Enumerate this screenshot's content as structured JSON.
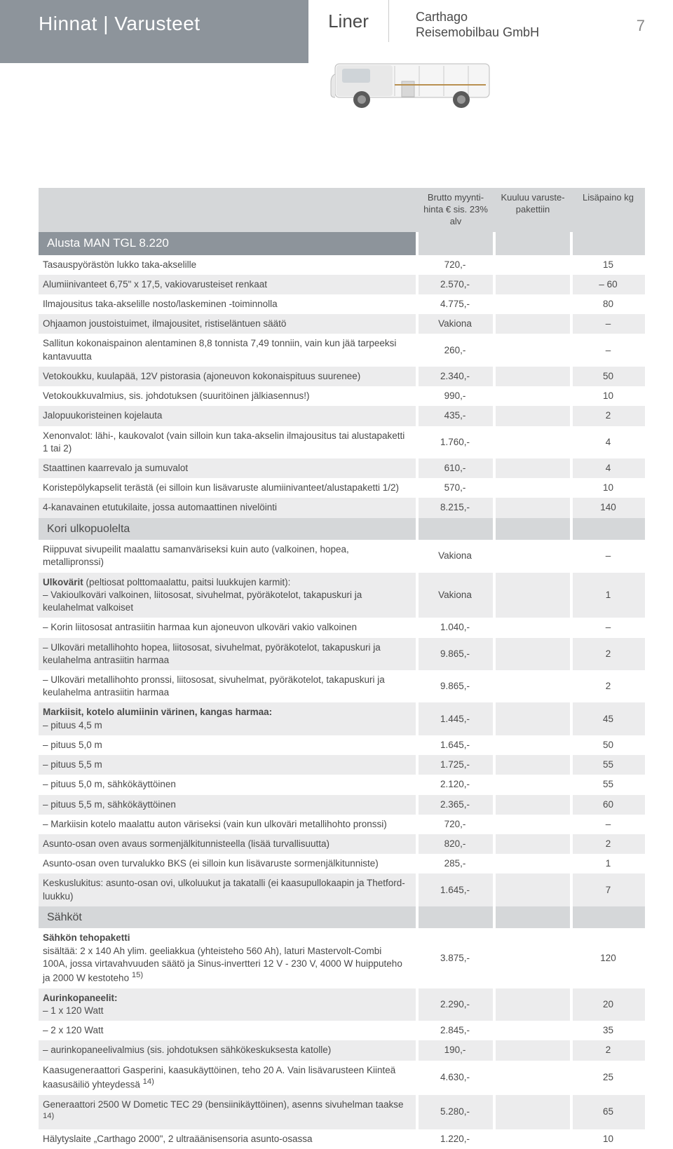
{
  "header": {
    "title": "Hinnat | Varusteet",
    "mid": "Liner",
    "company_line1": "Carthago",
    "company_line2": "Reisemobilbau GmbH",
    "page": "7"
  },
  "columns": {
    "c1_blank": "",
    "c2": "Brutto myynti-hinta € sis. 23% alv",
    "c3": "Kuuluu varuste-pakettiin",
    "c4": "Lisäpaino kg"
  },
  "section1": {
    "title": "Alusta MAN TGL 8.220"
  },
  "rows1": [
    {
      "d": "Tasauspyörästön lukko taka-akselille",
      "p": "720,-",
      "m": "",
      "w": "15"
    },
    {
      "d": "Alumiinivanteet 6,75\" x 17,5, vakiovarusteiset renkaat",
      "p": "2.570,-",
      "m": "",
      "w": "– 60"
    },
    {
      "d": "Ilmajousitus taka-akselille nosto/laskeminen -toiminnolla",
      "p": "4.775,-",
      "m": "",
      "w": "80"
    },
    {
      "d": "Ohjaamon joustoistuimet, ilmajousitet, ristiseläntuen säätö",
      "p": "Vakiona",
      "m": "",
      "w": "–"
    },
    {
      "d": "Sallitun kokonaispainon alentaminen 8,8 tonnista 7,49 tonniin, vain kun jää tarpeeksi kantavuutta",
      "p": "260,-",
      "m": "",
      "w": "–"
    },
    {
      "d": "Vetokoukku, kuulapää, 12V pistorasia (ajoneuvon kokonaispituus suurenee)",
      "p": "2.340,-",
      "m": "",
      "w": "50"
    },
    {
      "d": "Vetokoukkuvalmius, sis. johdotuksen (suuritöinen jälkiasennus!)",
      "p": "990,-",
      "m": "",
      "w": "10"
    },
    {
      "d": "Jalopuukoristeinen kojelauta",
      "p": "435,-",
      "m": "",
      "w": "2"
    },
    {
      "d": "Xenonvalot: lähi-, kaukovalot (vain silloin kun taka-akselin ilmajousitus tai alustapaketti 1 tai 2)",
      "p": "1.760,-",
      "m": "",
      "w": "4"
    },
    {
      "d": "Staattinen kaarrevalo ja sumuvalot",
      "p": "610,-",
      "m": "",
      "w": "4"
    },
    {
      "d": "Koristepölykapselit terästä (ei silloin kun lisävaruste alumiinivanteet/alustapaketti 1/2)",
      "p": "570,-",
      "m": "",
      "w": "10"
    },
    {
      "d": "4-kanavainen etutukilaite, jossa automaattinen nivelöinti",
      "p": "8.215,-",
      "m": "",
      "w": "140"
    }
  ],
  "section2": {
    "title": "Kori ulkopuolelta"
  },
  "rows2": [
    {
      "d": "Riippuvat sivupeilit maalattu samanväriseksi kuin auto (valkoinen, hopea, metallipronssi)",
      "p": "Vakiona",
      "m": "",
      "w": "–"
    },
    {
      "d": "<span class='bold'>Ulkovärit</span> (peltiosat polttomaalattu, paitsi luukkujen karmit):<br>– Vakioulkoväri valkoinen, liitososat, sivuhelmat, pyöräkotelot, takapuskuri ja keulahelmat valkoiset",
      "p": "Vakiona",
      "m": "",
      "w": "1"
    },
    {
      "d": "– Korin liitososat antrasiitin harmaa kun ajoneuvon ulkoväri vakio valkoinen",
      "indent": true,
      "p": "1.040,-",
      "m": "",
      "w": "–"
    },
    {
      "d": "– Ulkoväri metallihohto hopea, liitososat, sivuhelmat, pyöräkotelot, takapuskuri ja keulahelma antrasiitin harmaa",
      "indent": true,
      "p": "9.865,-",
      "m": "",
      "w": "2"
    },
    {
      "d": "– Ulkoväri metallihohto pronssi, liitososat, sivuhelmat, pyöräkotelot, takapuskuri ja keulahelma antrasiitin harmaa",
      "indent": true,
      "p": "9.865,-",
      "m": "",
      "w": "2"
    },
    {
      "d": "<span class='bold'>Markiisit, kotelo alumiinin värinen, kangas harmaa:</span><br>– pituus 4,5 m",
      "p": "1.445,-",
      "m": "",
      "w": "45"
    },
    {
      "d": "– pituus 5,0 m",
      "indent": true,
      "p": "1.645,-",
      "m": "",
      "w": "50"
    },
    {
      "d": "– pituus 5,5 m",
      "indent": true,
      "p": "1.725,-",
      "m": "",
      "w": "55"
    },
    {
      "d": "– pituus 5,0 m, sähkökäyttöinen",
      "indent": true,
      "p": "2.120,-",
      "m": "",
      "w": "55"
    },
    {
      "d": "– pituus 5,5 m, sähkökäyttöinen",
      "indent": true,
      "p": "2.365,-",
      "m": "",
      "w": "60"
    },
    {
      "d": "– Markiisin kotelo maalattu auton väriseksi (vain kun ulkoväri metallihohto pronssi)",
      "indent": true,
      "p": "720,-",
      "m": "",
      "w": "–"
    },
    {
      "d": "Asunto-osan oven avaus sormenjälkitunnisteella (lisää turvallisuutta)",
      "p": "820,-",
      "m": "",
      "w": "2"
    },
    {
      "d": "Asunto-osan oven turvalukko BKS (ei silloin kun lisävaruste sormenjälkitunniste)",
      "p": "285,-",
      "m": "",
      "w": "1"
    },
    {
      "d": "Keskuslukitus: asunto-osan ovi, ulkoluukut ja takatalli (ei kaasupullokaapin ja Thetford-luukku)",
      "p": "1.645,-",
      "m": "",
      "w": "7"
    }
  ],
  "section3": {
    "title": "Sähköt"
  },
  "rows3": [
    {
      "d": "<span class='bold'>Sähkön tehopaketti</span><br>sisältää: 2 x 140 Ah ylim. geeliakkua (yhteisteho 560 Ah), laturi Mastervolt-Combi 100A, jossa virtavahvuuden säätö ja  Sinus-invertteri 12 V - 230 V, 4000 W huipputeho ja 2000 W kestoteho <sup>15)</sup>",
      "p": "3.875,-",
      "m": "",
      "w": "120"
    },
    {
      "d": "<span class='bold'>Aurinkopaneelit:</span><br>– 1 x 120 Watt",
      "p": "2.290,-",
      "m": "",
      "w": "20"
    },
    {
      "d": "– 2 x 120 Watt",
      "indent": true,
      "p": "2.845,-",
      "m": "",
      "w": "35"
    },
    {
      "d": "– aurinkopaneelivalmius (sis. johdotuksen sähkökeskuksesta katolle)",
      "indent": true,
      "p": "190,-",
      "m": "",
      "w": "2"
    },
    {
      "d": "Kaasugeneraattori Gasperini, kaasukäyttöinen, teho 20 A. Vain lisävarusteen Kiinteä kaasusäiliö yhteydessä <sup>14)</sup>",
      "p": "4.630,-",
      "m": "",
      "w": "25"
    },
    {
      "d": "Generaattori 2500 W Dometic TEC 29 (bensiinikäyttöinen), asenns sivuhelman taakse <sup>14)</sup>",
      "p": "5.280,-",
      "m": "",
      "w": "65"
    },
    {
      "d": "Hälytyslaite „Carthago 2000\", 2 ultraäänisensoria asunto-osassa",
      "p": "1.220,-",
      "m": "",
      "w": "10"
    }
  ]
}
